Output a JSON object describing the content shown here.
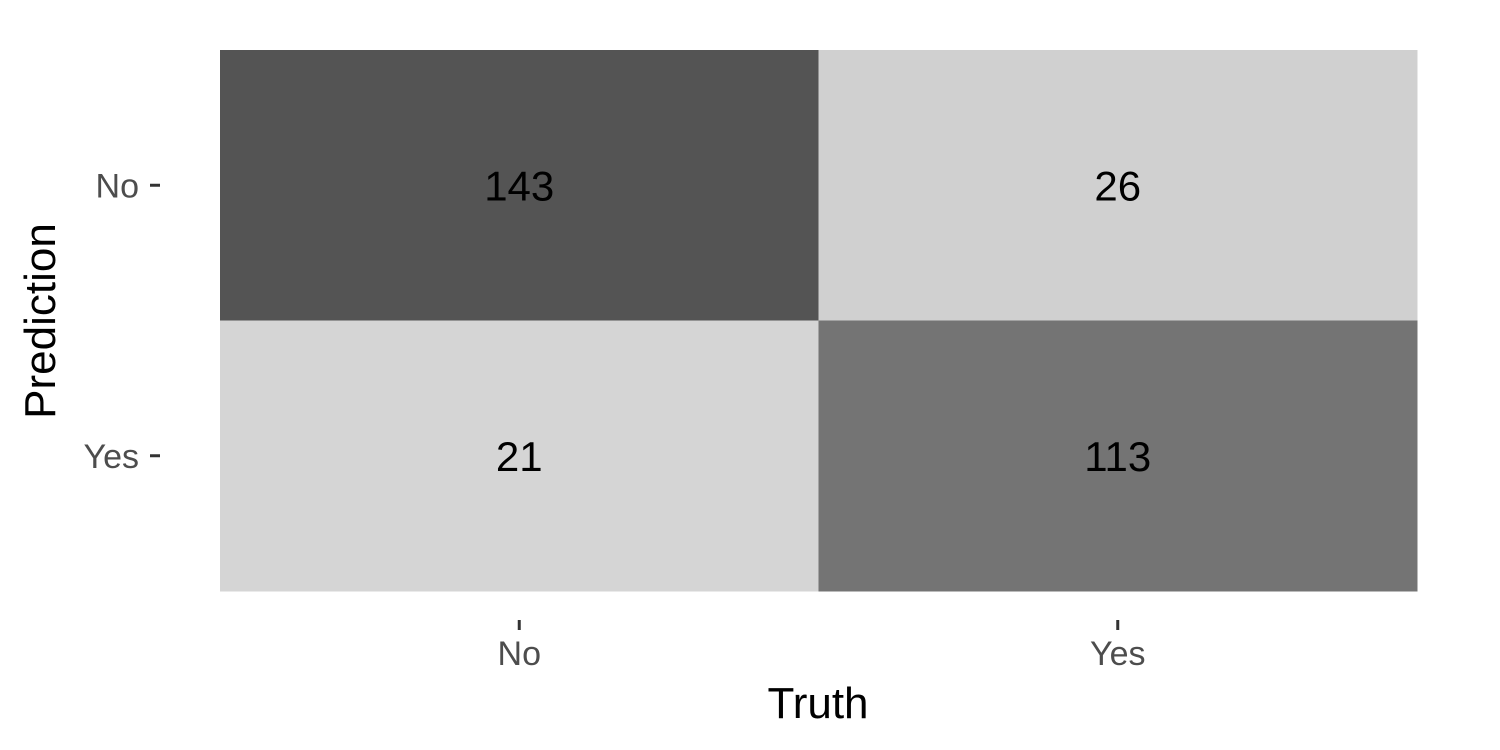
{
  "chart_data": {
    "type": "heatmap",
    "title": "",
    "xlabel": "Truth",
    "ylabel": "Prediction",
    "x_categories": [
      "No",
      "Yes"
    ],
    "y_categories": [
      "No",
      "Yes"
    ],
    "cells": [
      {
        "truth": "No",
        "prediction": "No",
        "value": 143
      },
      {
        "truth": "Yes",
        "prediction": "No",
        "value": 26
      },
      {
        "truth": "No",
        "prediction": "Yes",
        "value": 21
      },
      {
        "truth": "Yes",
        "prediction": "Yes",
        "value": 113
      }
    ],
    "color_scale": {
      "low": "#ebebeb",
      "high": "#545454"
    },
    "grid": false,
    "legend": "none"
  }
}
